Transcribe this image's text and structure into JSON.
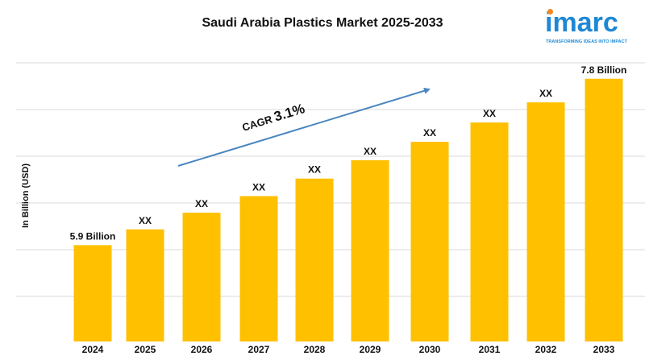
{
  "header": {
    "title": "Saudi Arabia Plastics Market 2025-2033"
  },
  "logo": {
    "word": "imarc",
    "tagline": "TRANSFORMING IDEAS INTO IMPACT"
  },
  "cagr": {
    "label": "CAGR",
    "value": "3.1%"
  },
  "colors": {
    "bar": "#ffc000",
    "arrow": "#4a86c1",
    "grid": "#d9d9d9",
    "brand": "#1e88d6",
    "logo_dot": "#f28a1e"
  },
  "chart_data": {
    "type": "bar",
    "title": "Saudi Arabia Plastics Market 2025-2033",
    "ylabel": "In Billion (USD)",
    "xlabel": "",
    "categories": [
      "2024",
      "2025",
      "2026",
      "2027",
      "2028",
      "2029",
      "2030",
      "2031",
      "2032",
      "2033"
    ],
    "values": [
      5.9,
      6.08,
      6.27,
      6.46,
      6.66,
      6.87,
      7.08,
      7.3,
      7.53,
      7.8
    ],
    "data_labels": [
      "5.9 Billion",
      "XX",
      "XX",
      "XX",
      "XX",
      "XX",
      "XX",
      "XX",
      "XX",
      "7.8 Billion"
    ],
    "ylim": [
      4.8,
      8.0
    ],
    "grid": true,
    "legend": "none"
  }
}
